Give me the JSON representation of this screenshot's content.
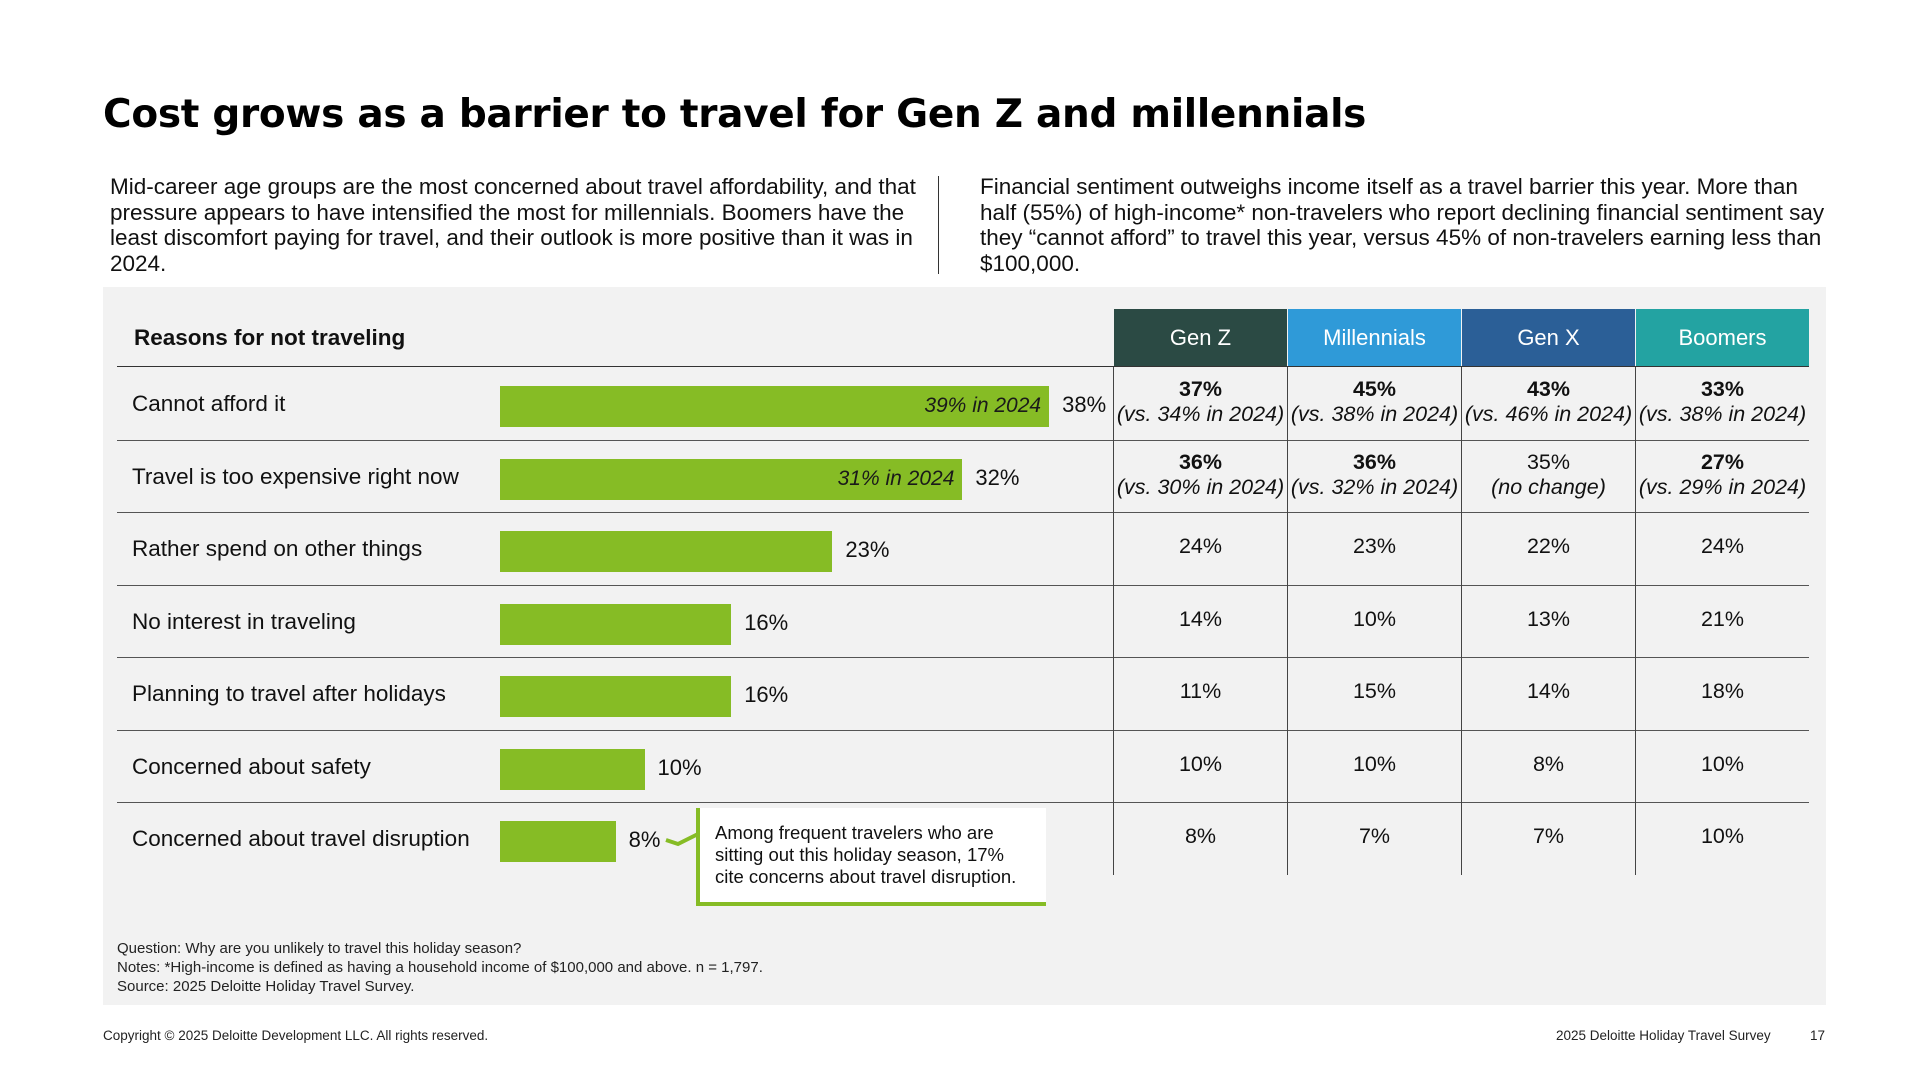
{
  "title": "Cost grows as a barrier to travel for Gen Z and millennials",
  "intro_left": "Mid-career age groups are the most concerned about travel affordability, and that pressure appears to have intensified the most for millennials. Boomers have the least discomfort paying for travel, and their outlook is more positive than it was in 2024.",
  "intro_right": "Financial sentiment outweighs income itself as a travel barrier this year. More than half (55%) of high-income* non-travelers who report declining financial sentiment say they “cannot afford” to travel this year, versus 45% of non-travelers earning less than $100,000.",
  "table_header": "Reasons for not traveling",
  "generations": [
    "Gen Z",
    "Millennials",
    "Gen X",
    "Boomers"
  ],
  "gen_colors": [
    "#2b4a44",
    "#2f9ad8",
    "#2b5f97",
    "#23a3a2"
  ],
  "bar_color": "#86bc25",
  "chart_data": {
    "type": "bar",
    "orientation": "horizontal",
    "categories": [
      "Cannot afford it",
      "Travel is too expensive right now",
      "Rather spend on other things",
      "No interest in traveling",
      "Planning to travel after holidays",
      "Concerned about safety",
      "Concerned about travel disruption"
    ],
    "values": [
      38,
      32,
      23,
      16,
      16,
      10,
      8
    ],
    "value_labels": [
      "38%",
      "32%",
      "23%",
      "16%",
      "16%",
      "10%",
      "8%"
    ],
    "prior_year_labels": [
      "39% in 2024",
      "31% in 2024",
      "",
      "",
      "",
      "",
      ""
    ],
    "xlim": [
      0,
      40
    ]
  },
  "gen_table": [
    [
      {
        "main": "37%",
        "sub": "(vs. 34% in 2024)",
        "bold": true
      },
      {
        "main": "45%",
        "sub": "(vs. 38% in 2024)",
        "bold": true
      },
      {
        "main": "43%",
        "sub": "(vs. 46% in 2024)",
        "bold": true
      },
      {
        "main": "33%",
        "sub": "(vs. 38% in 2024)",
        "bold": true
      }
    ],
    [
      {
        "main": "36%",
        "sub": "(vs. 30% in 2024)",
        "bold": true
      },
      {
        "main": "36%",
        "sub": "(vs. 32% in 2024)",
        "bold": true
      },
      {
        "main": "35%",
        "sub": "(no change)",
        "bold": false
      },
      {
        "main": "27%",
        "sub": "(vs. 29% in 2024)",
        "bold": true
      }
    ],
    [
      {
        "main": "24%"
      },
      {
        "main": "23%"
      },
      {
        "main": "22%"
      },
      {
        "main": "24%"
      }
    ],
    [
      {
        "main": "14%"
      },
      {
        "main": "10%"
      },
      {
        "main": "13%"
      },
      {
        "main": "21%"
      }
    ],
    [
      {
        "main": "11%"
      },
      {
        "main": "15%"
      },
      {
        "main": "14%"
      },
      {
        "main": "18%"
      }
    ],
    [
      {
        "main": "10%"
      },
      {
        "main": "10%"
      },
      {
        "main": "8%"
      },
      {
        "main": "10%"
      }
    ],
    [
      {
        "main": "8%"
      },
      {
        "main": "7%"
      },
      {
        "main": "7%"
      },
      {
        "main": "10%"
      }
    ]
  ],
  "callout": "Among frequent travelers who are sitting out this holiday season, 17% cite concerns about travel disruption.",
  "footnotes": [
    "Question: Why are you unlikely to travel this holiday season?",
    "Notes: *High-income is defined as having a household income of $100,000 and above. n = 1,797.",
    "Source: 2025 Deloitte Holiday Travel Survey."
  ],
  "copyright": "Copyright © 2025 Deloitte Development LLC. All rights reserved.",
  "survey_name": "2025 Deloitte Holiday Travel Survey",
  "page_number": "17"
}
